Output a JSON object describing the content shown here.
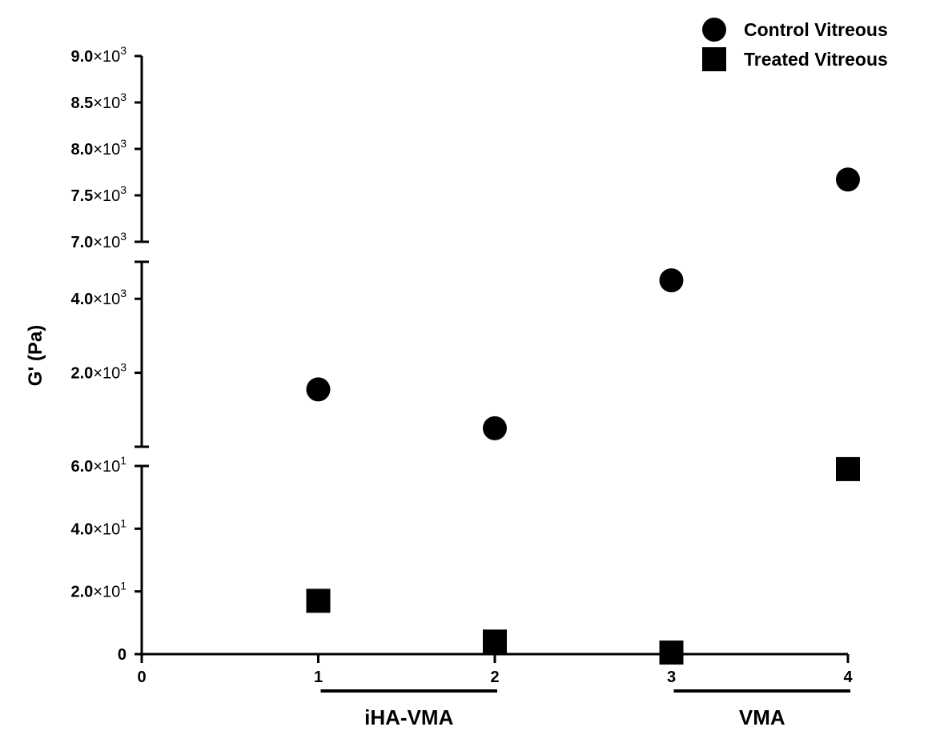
{
  "chart_data": {
    "type": "scatter",
    "title": "",
    "xlabel": "",
    "ylabel": "G'  (Pa)",
    "y_axis_break": true,
    "y_segments": [
      {
        "range": [
          7000,
          9000
        ],
        "ticks": [
          {
            "value": 9000,
            "mantissa": "9.0",
            "exp": "3"
          },
          {
            "value": 8500,
            "mantissa": "8.5",
            "exp": "3"
          },
          {
            "value": 8000,
            "mantissa": "8.0",
            "exp": "3"
          },
          {
            "value": 7500,
            "mantissa": "7.5",
            "exp": "3"
          },
          {
            "value": 7000,
            "mantissa": "7.0",
            "exp": "3"
          }
        ]
      },
      {
        "range": [
          0,
          5000
        ],
        "ticks": [
          {
            "value": 4000,
            "mantissa": "4.0",
            "exp": "3"
          },
          {
            "value": 2000,
            "mantissa": "2.0",
            "exp": "3"
          }
        ]
      },
      {
        "range": [
          0,
          60
        ],
        "ticks": [
          {
            "value": 60,
            "mantissa": "6.0",
            "exp": "1"
          },
          {
            "value": 40,
            "mantissa": "4.0",
            "exp": "1"
          },
          {
            "value": 20,
            "mantissa": "2.0",
            "exp": "1"
          },
          {
            "value": 0,
            "label": "0"
          }
        ]
      }
    ],
    "x_ticks": [
      "0",
      "1",
      "2",
      "3",
      "4"
    ],
    "xlim": [
      0,
      4
    ],
    "series": [
      {
        "name": "Control Vitreous",
        "marker": "circle",
        "color": "#000000",
        "x": [
          1,
          2,
          3,
          4
        ],
        "y": [
          1550,
          500,
          4500,
          7670
        ]
      },
      {
        "name": "Treated Vitreous",
        "marker": "square",
        "color": "#000000",
        "x": [
          1,
          2,
          3,
          4
        ],
        "y": [
          17,
          4,
          0.5,
          59
        ]
      }
    ],
    "groups": [
      {
        "label": "iHA-VMA",
        "from": 1,
        "to": 2
      },
      {
        "label": "VMA",
        "from": 3,
        "to": 4
      }
    ],
    "legend_position": "top-right",
    "grid": false
  }
}
